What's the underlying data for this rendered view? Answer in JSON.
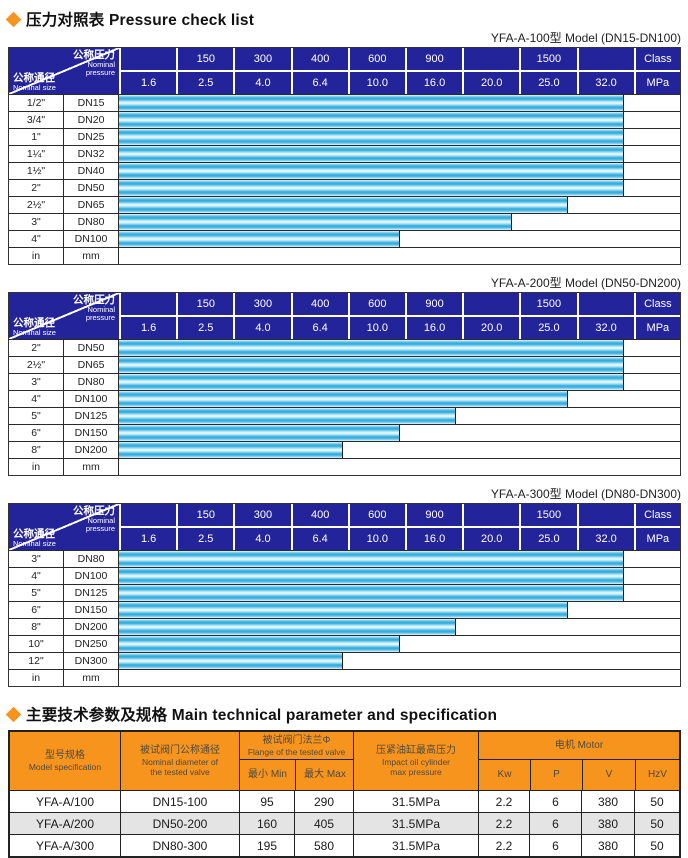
{
  "colors": {
    "accent_orange": "#f7941e",
    "header_navy": "#24249a",
    "bar_cyan": "#29a8dc",
    "row_alt_gray": "#e4e4e4"
  },
  "pressure_section": {
    "title": "压力对照表 Pressure check list",
    "corner": {
      "top_zh": "公称压力",
      "top_en1": "Nominal",
      "top_en2": "pressure",
      "bottom_zh": "公称通径",
      "bottom_en": "Nominal size"
    },
    "class_row": [
      "",
      "150",
      "300",
      "400",
      "600",
      "900",
      "",
      "1500",
      "",
      "Class"
    ],
    "mpa_row": [
      "1.6",
      "2.5",
      "4.0",
      "6.4",
      "10.0",
      "16.0",
      "20.0",
      "25.0",
      "32.0",
      "MPa"
    ],
    "footer": {
      "in_label": "in",
      "mm_label": "mm"
    },
    "tables": [
      {
        "subtitle": "YFA-A-100型  Model (DN15-DN100)",
        "rows": [
          {
            "inch": "1/2\"",
            "dn": "DN15",
            "bar": 90,
            "max_mpa": "32.0"
          },
          {
            "inch": "3/4\"",
            "dn": "DN20",
            "bar": 90,
            "max_mpa": "32.0"
          },
          {
            "inch": "1\"",
            "dn": "DN25",
            "bar": 90,
            "max_mpa": "32.0"
          },
          {
            "inch": "1¼\"",
            "dn": "DN32",
            "bar": 90,
            "max_mpa": "32.0"
          },
          {
            "inch": "1½\"",
            "dn": "DN40",
            "bar": 90,
            "max_mpa": "32.0"
          },
          {
            "inch": "2\"",
            "dn": "DN50",
            "bar": 90,
            "max_mpa": "32.0"
          },
          {
            "inch": "2½\"",
            "dn": "DN65",
            "bar": 80,
            "max_mpa": "25.0"
          },
          {
            "inch": "3\"",
            "dn": "DN80",
            "bar": 70,
            "max_mpa": "20.0"
          },
          {
            "inch": "4\"",
            "dn": "DN100",
            "bar": 50,
            "max_mpa": "10.0"
          }
        ]
      },
      {
        "subtitle": "YFA-A-200型  Model (DN50-DN200)",
        "rows": [
          {
            "inch": "2\"",
            "dn": "DN50",
            "bar": 90,
            "max_mpa": "32.0"
          },
          {
            "inch": "2½\"",
            "dn": "DN65",
            "bar": 90,
            "max_mpa": "32.0"
          },
          {
            "inch": "3\"",
            "dn": "DN80",
            "bar": 90,
            "max_mpa": "32.0"
          },
          {
            "inch": "4\"",
            "dn": "DN100",
            "bar": 80,
            "max_mpa": "25.0"
          },
          {
            "inch": "5\"",
            "dn": "DN125",
            "bar": 60,
            "max_mpa": "16.0"
          },
          {
            "inch": "6\"",
            "dn": "DN150",
            "bar": 50,
            "max_mpa": "10.0"
          },
          {
            "inch": "8\"",
            "dn": "DN200",
            "bar": 40,
            "max_mpa": "6.4"
          }
        ]
      },
      {
        "subtitle": "YFA-A-300型  Model (DN80-DN300)",
        "rows": [
          {
            "inch": "3\"",
            "dn": "DN80",
            "bar": 90,
            "max_mpa": "32.0"
          },
          {
            "inch": "4\"",
            "dn": "DN100",
            "bar": 90,
            "max_mpa": "32.0"
          },
          {
            "inch": "5\"",
            "dn": "DN125",
            "bar": 90,
            "max_mpa": "32.0"
          },
          {
            "inch": "6\"",
            "dn": "DN150",
            "bar": 80,
            "max_mpa": "25.0"
          },
          {
            "inch": "8\"",
            "dn": "DN200",
            "bar": 60,
            "max_mpa": "16.0"
          },
          {
            "inch": "10\"",
            "dn": "DN250",
            "bar": 50,
            "max_mpa": "10.0"
          },
          {
            "inch": "12\"",
            "dn": "DN300",
            "bar": 40,
            "max_mpa": "6.4"
          }
        ]
      }
    ]
  },
  "spec_section": {
    "title": "主要技术参数及规格 Main technical parameter and specification",
    "header": {
      "model_zh": "型号规格",
      "model_en": "Model specification",
      "diameter_zh": "被试阀门公称通径",
      "diameter_en1": "Nominal diameter of",
      "diameter_en2": "the tested valve",
      "flange_zh": "被试阀门法兰Φ",
      "flange_en": "Flange of the tested valve",
      "min_label": "最小 Min",
      "max_label": "最大 Max",
      "pressure_zh": "压紧油缸最高压力",
      "pressure_en1": "Impact oil cylinder",
      "pressure_en2": "max pressure",
      "motor_label": "电机  Motor",
      "kw_label": "Kw",
      "p_label": "P",
      "v_label": "V",
      "hz_label": "HzV"
    },
    "rows": [
      [
        "YFA-A/100",
        "DN15-100",
        "95",
        "290",
        "31.5MPa",
        "2.2",
        "6",
        "380",
        "50"
      ],
      [
        "YFA-A/200",
        "DN50-200",
        "160",
        "405",
        "31.5MPa",
        "2.2",
        "6",
        "380",
        "50"
      ],
      [
        "YFA-A/300",
        "DN80-300",
        "195",
        "580",
        "31.5MPa",
        "2.2",
        "6",
        "380",
        "50"
      ]
    ]
  }
}
